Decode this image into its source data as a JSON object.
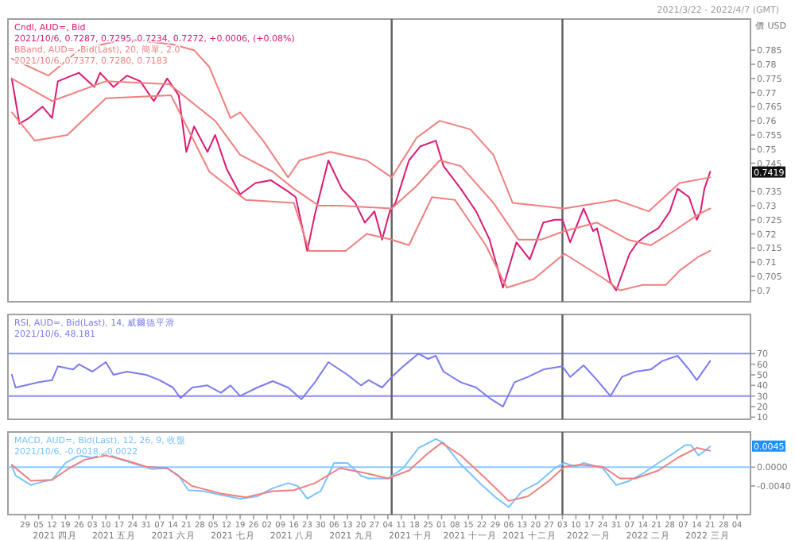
{
  "chart_data": [
    {
      "type": "line",
      "subtitle": "2021/3/22 - 2022/4/7 (GMT)",
      "ylabel": "價 USD",
      "tick_labels": "y",
      "annotations": [
        "Cndl, AUD=, Bid",
        "2021/10/6, 0.7287, 0.7295, 0.7234, 0.7272, +0.0006, (+0.08%)",
        "BBand, AUD=, Bid(Last), 20, 簡單, 2.0",
        "2021/10/6, 0.7377, 0.7280, 0.7183",
        {
          "text": "0.7419",
          "y": 0.7419
        }
      ],
      "xlim": [
        "2021-03-20",
        "2022-04-11"
      ],
      "ylim": [
        0.696,
        0.796
      ],
      "yticks": [
        {
          "value": 0.7,
          "label": "0.7"
        },
        0.705,
        0.71,
        0.715,
        0.72,
        0.725,
        0.73,
        0.735,
        0.745,
        0.75,
        0.755,
        0.76,
        0.765,
        0.77,
        0.775,
        0.78,
        0.785
      ],
      "ref_lines": [
        {
          "axis": "x",
          "value": "2021-10-06",
          "label": null,
          "color": "#606060"
        },
        {
          "axis": "x",
          "value": "2022-01-03",
          "label": null,
          "color": "#606060"
        }
      ],
      "series": [
        {
          "color": "#d81b72",
          "x": [
            "2021-03-22",
            "2021-03-26",
            "2021-03-31",
            "2021-04-07",
            "2021-04-12",
            "2021-04-15",
            "2021-04-26",
            "2021-05-04",
            "2021-05-07",
            "2021-05-14",
            "2021-05-21",
            "2021-05-28",
            "2021-06-04",
            "2021-06-11",
            "2021-06-17",
            "2021-06-21",
            "2021-06-25",
            "2021-07-02",
            "2021-07-06",
            "2021-07-12",
            "2021-07-19",
            "2021-07-27",
            "2021-08-04",
            "2021-08-13",
            "2021-08-17",
            "2021-08-23",
            "2021-08-27",
            "2021-09-03",
            "2021-09-10",
            "2021-09-17",
            "2021-09-22",
            "2021-09-27",
            "2021-10-01",
            "2021-10-05",
            "2021-10-08",
            "2021-10-15",
            "2021-10-21",
            "2021-10-29",
            "2021-11-02",
            "2021-11-11",
            "2021-11-19",
            "2021-11-26",
            "2021-12-03",
            "2021-12-10",
            "2021-12-17",
            "2021-12-24",
            "2021-12-30",
            "2022-01-03",
            "2022-01-07",
            "2022-01-14",
            "2022-01-19",
            "2022-01-21",
            "2022-01-28",
            "2022-01-31",
            "2022-02-07",
            "2022-02-11",
            "2022-02-17",
            "2022-02-22",
            "2022-02-28",
            "2022-03-04",
            "2022-03-10",
            "2022-03-14",
            "2022-03-16",
            "2022-03-18",
            "2022-03-21"
          ],
          "values": [
            0.775,
            0.759,
            0.761,
            0.765,
            0.761,
            0.774,
            0.777,
            0.772,
            0.777,
            0.772,
            0.776,
            0.774,
            0.767,
            0.775,
            0.769,
            0.749,
            0.758,
            0.749,
            0.755,
            0.743,
            0.734,
            0.738,
            0.739,
            0.735,
            0.733,
            0.714,
            0.727,
            0.746,
            0.736,
            0.731,
            0.724,
            0.728,
            0.718,
            0.728,
            0.731,
            0.746,
            0.751,
            0.753,
            0.744,
            0.736,
            0.728,
            0.718,
            0.701,
            0.717,
            0.711,
            0.724,
            0.725,
            0.725,
            0.717,
            0.729,
            0.721,
            0.722,
            0.703,
            0.7,
            0.713,
            0.717,
            0.72,
            0.722,
            0.728,
            0.736,
            0.733,
            0.725,
            0.728,
            0.736,
            0.742
          ]
        },
        {
          "color": "#f07f7f",
          "x": [
            "2021-03-22",
            "2021-04-10",
            "2021-04-26",
            "2021-05-20",
            "2021-06-14",
            "2021-06-25",
            "2021-07-03",
            "2021-07-14",
            "2021-07-19",
            "2021-07-31",
            "2021-08-13",
            "2021-08-19",
            "2021-09-04",
            "2021-09-23",
            "2021-10-06",
            "2021-10-19",
            "2021-10-31",
            "2021-11-16",
            "2021-11-28",
            "2021-12-08",
            "2022-01-04",
            "2022-01-31",
            "2022-02-17",
            "2022-03-05",
            "2022-03-21"
          ],
          "values": [
            0.782,
            0.776,
            0.785,
            0.789,
            0.787,
            0.785,
            0.779,
            0.761,
            0.763,
            0.753,
            0.74,
            0.746,
            0.749,
            0.746,
            0.74,
            0.754,
            0.76,
            0.757,
            0.748,
            0.731,
            0.729,
            0.732,
            0.728,
            0.738,
            0.74
          ]
        },
        {
          "color": "#f07f7f",
          "x": [
            "2021-03-22",
            "2021-04-12",
            "2021-05-10",
            "2021-06-12",
            "2021-07-06",
            "2021-07-19",
            "2021-08-05",
            "2021-08-16",
            "2021-08-29",
            "2021-09-09",
            "2021-10-06",
            "2021-10-19",
            "2021-10-31",
            "2021-11-11",
            "2021-11-28",
            "2021-12-11",
            "2021-12-23",
            "2022-01-04",
            "2022-01-21",
            "2022-02-06",
            "2022-02-18",
            "2022-03-02",
            "2022-03-15",
            "2022-03-21"
          ],
          "values": [
            0.775,
            0.767,
            0.774,
            0.773,
            0.76,
            0.748,
            0.742,
            0.736,
            0.73,
            0.73,
            0.729,
            0.737,
            0.746,
            0.744,
            0.731,
            0.718,
            0.718,
            0.721,
            0.724,
            0.718,
            0.716,
            0.721,
            0.727,
            0.729
          ]
        },
        {
          "color": "#f07f7f",
          "x": [
            "2021-03-22",
            "2021-04-03",
            "2021-04-20",
            "2021-05-10",
            "2021-06-13",
            "2021-07-03",
            "2021-07-22",
            "2021-08-16",
            "2021-08-24",
            "2021-09-12",
            "2021-09-23",
            "2021-10-06",
            "2021-10-15",
            "2021-10-27",
            "2021-11-08",
            "2021-11-24",
            "2021-12-05",
            "2021-12-19",
            "2022-01-04",
            "2022-01-25",
            "2022-02-02",
            "2022-02-14",
            "2022-02-26",
            "2022-03-05",
            "2022-03-15",
            "2022-03-21"
          ],
          "values": [
            0.763,
            0.753,
            0.755,
            0.768,
            0.769,
            0.742,
            0.732,
            0.731,
            0.714,
            0.714,
            0.72,
            0.718,
            0.716,
            0.733,
            0.732,
            0.716,
            0.701,
            0.704,
            0.713,
            0.704,
            0.7,
            0.702,
            0.702,
            0.707,
            0.712,
            0.714
          ]
        }
      ]
    },
    {
      "type": "line",
      "tick_labels": "y",
      "annotations": [
        "RSI, AUD=, Bid(Last), 14, 威爾德平滑",
        "2021/10/6, 48.181"
      ],
      "xlim": [
        "2021-03-20",
        "2022-04-11"
      ],
      "ylim": [
        8,
        107
      ],
      "yticks": [
        10,
        20,
        30,
        40,
        50,
        60,
        70
      ],
      "ref_lines": [
        {
          "axis": "y",
          "value": 70,
          "label": null,
          "color": "#8c8cff"
        },
        {
          "axis": "y",
          "value": 30,
          "label": null,
          "color": "#8c8cff"
        },
        {
          "axis": "x",
          "value": "2021-10-06",
          "label": null,
          "color": "#606060"
        },
        {
          "axis": "x",
          "value": "2022-01-03",
          "label": null,
          "color": "#606060"
        }
      ],
      "series": [
        {
          "color": "#7b7bf0",
          "x": [
            "2021-03-22",
            "2021-03-24",
            "2021-03-29",
            "2021-04-05",
            "2021-04-12",
            "2021-04-15",
            "2021-04-23",
            "2021-04-26",
            "2021-05-03",
            "2021-05-10",
            "2021-05-14",
            "2021-05-21",
            "2021-05-31",
            "2021-06-07",
            "2021-06-14",
            "2021-06-18",
            "2021-06-24",
            "2021-07-02",
            "2021-07-09",
            "2021-07-14",
            "2021-07-19",
            "2021-07-28",
            "2021-08-05",
            "2021-08-13",
            "2021-08-20",
            "2021-08-27",
            "2021-09-03",
            "2021-09-13",
            "2021-09-20",
            "2021-09-24",
            "2021-10-01",
            "2021-10-06",
            "2021-10-12",
            "2021-10-20",
            "2021-10-25",
            "2021-10-29",
            "2021-11-02",
            "2021-11-11",
            "2021-11-19",
            "2021-11-26",
            "2021-12-03",
            "2021-12-09",
            "2021-12-16",
            "2021-12-24",
            "2022-01-03",
            "2022-01-07",
            "2022-01-14",
            "2022-01-21",
            "2022-01-28",
            "2022-02-03",
            "2022-02-10",
            "2022-02-18",
            "2022-02-24",
            "2022-03-04",
            "2022-03-10",
            "2022-03-14",
            "2022-03-21"
          ],
          "values": [
            50,
            38,
            40,
            43,
            45,
            58,
            55,
            60,
            53,
            62,
            50,
            53,
            50,
            45,
            38,
            28,
            38,
            40,
            33,
            40,
            30,
            38,
            44,
            38,
            27,
            43,
            62,
            50,
            40,
            45,
            38,
            48,
            58,
            70,
            65,
            68,
            53,
            43,
            38,
            28,
            20,
            43,
            48,
            55,
            58,
            48,
            59,
            45,
            30,
            48,
            53,
            55,
            63,
            68,
            55,
            45,
            63
          ]
        }
      ]
    },
    {
      "type": "line",
      "title": "MACD, AUD=, Bid(Last), 12, 26, 9, 收盤",
      "subtitle": "2021/10/6, -0.0018, -0.0022",
      "annotations": [
        {
          "text": "0.0045",
          "y": 0.0045
        },
        "2021 四月",
        "2021 五月",
        "2021 六月",
        "2021 七月",
        "2021 八月",
        "2021 九月",
        "2021 十月",
        "2021 十一月",
        "2021 十二月",
        "2022 一月",
        "2022 二月",
        "2022 三月"
      ],
      "xlim": [
        "2021-03-20",
        "2022-04-11"
      ],
      "ylim": [
        -0.0101,
        0.0075
      ],
      "yticks": [
        {
          "value": 0,
          "label": "0.0000"
        },
        {
          "value": -0.004,
          "label": "-0.0040"
        }
      ],
      "xticks": [
        {
          "value": "2021-03-29",
          "label": "29"
        },
        {
          "value": "2021-04-05",
          "label": "05"
        },
        {
          "value": "2021-04-12",
          "label": "12"
        },
        {
          "value": "2021-04-19",
          "label": "19"
        },
        {
          "value": "2021-04-26",
          "label": "26"
        },
        {
          "value": "2021-05-03",
          "label": "03"
        },
        {
          "value": "2021-05-10",
          "label": "10"
        },
        {
          "value": "2021-05-17",
          "label": "17"
        },
        {
          "value": "2021-05-24",
          "label": "24"
        },
        {
          "value": "2021-05-31",
          "label": "31"
        },
        {
          "value": "2021-06-07",
          "label": "07"
        },
        {
          "value": "2021-06-14",
          "label": "14"
        },
        {
          "value": "2021-06-21",
          "label": "21"
        },
        {
          "value": "2021-06-28",
          "label": "28"
        },
        {
          "value": "2021-07-05",
          "label": "05"
        },
        {
          "value": "2021-07-12",
          "label": "12"
        },
        {
          "value": "2021-07-19",
          "label": "19"
        },
        {
          "value": "2021-07-26",
          "label": "26"
        },
        {
          "value": "2021-08-02",
          "label": "02"
        },
        {
          "value": "2021-08-09",
          "label": "09"
        },
        {
          "value": "2021-08-16",
          "label": "16"
        },
        {
          "value": "2021-08-23",
          "label": "23"
        },
        {
          "value": "2021-08-30",
          "label": "30"
        },
        {
          "value": "2021-09-06",
          "label": "06"
        },
        {
          "value": "2021-09-13",
          "label": "13"
        },
        {
          "value": "2021-09-20",
          "label": "20"
        },
        {
          "value": "2021-09-27",
          "label": "27"
        },
        {
          "value": "2021-10-04",
          "label": "04"
        },
        {
          "value": "2021-10-11",
          "label": "11"
        },
        {
          "value": "2021-10-18",
          "label": "18"
        },
        {
          "value": "2021-10-25",
          "label": "25"
        },
        {
          "value": "2021-11-01",
          "label": "01"
        },
        {
          "value": "2021-11-08",
          "label": "08"
        },
        {
          "value": "2021-11-15",
          "label": "15"
        },
        {
          "value": "2021-11-22",
          "label": "22"
        },
        {
          "value": "2021-11-29",
          "label": "29"
        },
        {
          "value": "2021-12-06",
          "label": "06"
        },
        {
          "value": "2021-12-13",
          "label": "13"
        },
        {
          "value": "2021-12-20",
          "label": "20"
        },
        {
          "value": "2021-12-27",
          "label": "27"
        },
        {
          "value": "2022-01-03",
          "label": "03"
        },
        {
          "value": "2022-01-10",
          "label": "10"
        },
        {
          "value": "2022-01-17",
          "label": "17"
        },
        {
          "value": "2022-01-24",
          "label": "24"
        },
        {
          "value": "2022-01-31",
          "label": "31"
        },
        {
          "value": "2022-02-07",
          "label": "07"
        },
        {
          "value": "2022-02-14",
          "label": "14"
        },
        {
          "value": "2022-02-21",
          "label": "21"
        },
        {
          "value": "2022-02-28",
          "label": "28"
        },
        {
          "value": "2022-03-07",
          "label": "07"
        },
        {
          "value": "2022-03-14",
          "label": "14"
        },
        {
          "value": "2022-03-21",
          "label": "21"
        },
        {
          "value": "2022-03-28",
          "label": "28"
        },
        {
          "value": "2022-04-04",
          "label": "04"
        }
      ],
      "ref_lines": [
        {
          "axis": "y",
          "value": 0,
          "label": null,
          "color": "#8ecbff"
        },
        {
          "axis": "x",
          "value": "2021-10-06",
          "label": null,
          "color": "#606060"
        },
        {
          "axis": "x",
          "value": "2022-01-03",
          "label": null,
          "color": "#606060"
        }
      ],
      "series": [
        {
          "color": "#7cc2ff",
          "x": [
            "2021-03-22",
            "2021-03-24",
            "2021-04-01",
            "2021-04-07",
            "2021-04-12",
            "2021-04-19",
            "2021-04-26",
            "2021-05-03",
            "2021-05-10",
            "2021-05-18",
            "2021-05-26",
            "2021-06-03",
            "2021-06-11",
            "2021-06-17",
            "2021-06-22",
            "2021-06-30",
            "2021-07-09",
            "2021-07-19",
            "2021-07-28",
            "2021-08-05",
            "2021-08-13",
            "2021-08-18",
            "2021-08-23",
            "2021-08-30",
            "2021-09-06",
            "2021-09-13",
            "2021-09-20",
            "2021-09-24",
            "2021-10-04",
            "2021-10-12",
            "2021-10-20",
            "2021-10-29",
            "2021-11-02",
            "2021-11-11",
            "2021-11-22",
            "2021-11-30",
            "2021-12-06",
            "2021-12-13",
            "2021-12-21",
            "2021-12-30",
            "2022-01-04",
            "2022-01-10",
            "2022-01-14",
            "2022-01-24",
            "2022-01-31",
            "2022-02-07",
            "2022-02-14",
            "2022-02-22",
            "2022-03-02",
            "2022-03-08",
            "2022-03-11",
            "2022-03-15",
            "2022-03-21"
          ],
          "values": [
            0.0003,
            -0.0018,
            -0.0038,
            -0.0031,
            -0.0027,
            0.0009,
            0.0025,
            0.002,
            0.003,
            0.0016,
            0.0006,
            -0.0004,
            -0.0002,
            -0.0018,
            -0.0049,
            -0.0051,
            -0.0059,
            -0.0067,
            -0.0062,
            -0.0045,
            -0.0034,
            -0.004,
            -0.0067,
            -0.0051,
            0.0009,
            0.0009,
            -0.0018,
            -0.0024,
            -0.0024,
            -0.0002,
            0.0041,
            0.006,
            0.0052,
            0.0006,
            -0.0038,
            -0.0067,
            -0.0085,
            -0.0051,
            -0.0034,
            -0.0002,
            0.0009,
            0.0001,
            0.0009,
            -0.0002,
            -0.0038,
            -0.0029,
            -0.0013,
            0.0009,
            0.003,
            0.0047,
            0.0047,
            0.0025,
            0.0044
          ]
        },
        {
          "color": "#f07f7f",
          "x": [
            "2021-03-22",
            "2021-04-01",
            "2021-04-12",
            "2021-04-21",
            "2021-04-29",
            "2021-05-10",
            "2021-05-21",
            "2021-05-31",
            "2021-06-11",
            "2021-06-24",
            "2021-07-09",
            "2021-07-22",
            "2021-08-05",
            "2021-08-16",
            "2021-08-27",
            "2021-09-09",
            "2021-09-23",
            "2021-10-04",
            "2021-10-15",
            "2021-10-25",
            "2021-11-01",
            "2021-11-11",
            "2021-11-24",
            "2021-12-06",
            "2021-12-16",
            "2021-12-27",
            "2022-01-04",
            "2022-01-12",
            "2022-01-24",
            "2022-02-02",
            "2022-02-10",
            "2022-02-22",
            "2022-03-04",
            "2022-03-14",
            "2022-03-21"
          ],
          "values": [
            0.0005,
            -0.0029,
            -0.0027,
            -0.0002,
            0.0016,
            0.0025,
            0.0014,
            0.0001,
            -0.0002,
            -0.004,
            -0.0056,
            -0.0064,
            -0.0051,
            -0.0049,
            -0.0034,
            -0.0002,
            -0.0013,
            -0.0024,
            -0.0007,
            0.003,
            0.0052,
            0.0025,
            -0.0024,
            -0.0072,
            -0.0062,
            -0.0029,
            0.0001,
            0.0005,
            0.0001,
            -0.0024,
            -0.0024,
            -0.0007,
            0.002,
            0.0041,
            0.0035
          ]
        }
      ]
    }
  ]
}
